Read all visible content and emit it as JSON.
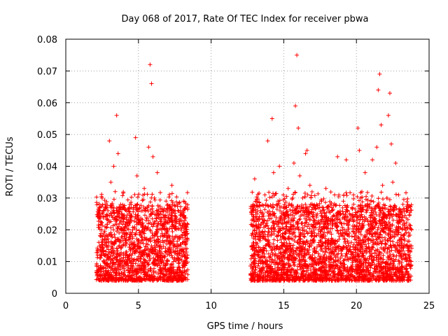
{
  "chart_data": {
    "type": "scatter",
    "title": "Day 068 of 2017, Rate Of TEC Index for receiver pbwa",
    "xlabel": "GPS time / hours",
    "ylabel": "ROTI / TECUs",
    "xlim": [
      0,
      25
    ],
    "ylim": [
      0,
      0.08
    ],
    "x_ticks": [
      0,
      5,
      10,
      15,
      20,
      25
    ],
    "y_ticks": [
      0,
      0.01,
      0.02,
      0.03,
      0.04,
      0.05,
      0.06,
      0.07,
      0.08
    ],
    "x_tick_labels": [
      "0",
      "5",
      "10",
      "15",
      "20",
      "25"
    ],
    "y_tick_labels": [
      "0",
      "0.01",
      "0.02",
      "0.03",
      "0.04",
      "0.05",
      "0.06",
      "0.07",
      "0.08"
    ],
    "grid": true,
    "marker": "+",
    "colors": {
      "marker": "#ff0000",
      "grid": "#a0a0a0",
      "axis": "#000000"
    },
    "data_segments": [
      {
        "x_start": 2.1,
        "x_end": 8.4
      },
      {
        "x_start": 12.7,
        "x_end": 23.8
      }
    ],
    "series": [
      {
        "name": "ROTI",
        "points": [
          [
            2.2,
            0.012
          ],
          [
            2.3,
            0.025
          ],
          [
            2.4,
            0.018
          ],
          [
            2.5,
            0.03
          ],
          [
            2.6,
            0.008
          ],
          [
            2.7,
            0.021
          ],
          [
            2.8,
            0.016
          ],
          [
            2.9,
            0.026
          ],
          [
            3.0,
            0.048
          ],
          [
            3.1,
            0.035
          ],
          [
            3.2,
            0.014
          ],
          [
            3.3,
            0.04
          ],
          [
            3.4,
            0.032
          ],
          [
            3.5,
            0.056
          ],
          [
            3.6,
            0.044
          ],
          [
            3.7,
            0.022
          ],
          [
            3.8,
            0.011
          ],
          [
            3.9,
            0.019
          ],
          [
            4.0,
            0.027
          ],
          [
            4.1,
            0.015
          ],
          [
            4.2,
            0.009
          ],
          [
            4.3,
            0.023
          ],
          [
            4.4,
            0.017
          ],
          [
            4.5,
            0.028
          ],
          [
            4.6,
            0.02
          ],
          [
            4.7,
            0.013
          ],
          [
            4.8,
            0.049
          ],
          [
            4.9,
            0.037
          ],
          [
            5.0,
            0.024
          ],
          [
            5.1,
            0.011
          ],
          [
            5.2,
            0.018
          ],
          [
            5.3,
            0.026
          ],
          [
            5.4,
            0.033
          ],
          [
            5.5,
            0.021
          ],
          [
            5.6,
            0.014
          ],
          [
            5.7,
            0.046
          ],
          [
            5.8,
            0.072
          ],
          [
            5.9,
            0.066
          ],
          [
            6.0,
            0.043
          ],
          [
            6.1,
            0.03
          ],
          [
            6.2,
            0.019
          ],
          [
            6.3,
            0.038
          ],
          [
            6.4,
            0.025
          ],
          [
            6.5,
            0.012
          ],
          [
            6.6,
            0.02
          ],
          [
            6.7,
            0.016
          ],
          [
            6.8,
            0.022
          ],
          [
            6.9,
            0.009
          ],
          [
            7.0,
            0.018
          ],
          [
            7.1,
            0.027
          ],
          [
            7.2,
            0.013
          ],
          [
            7.3,
            0.034
          ],
          [
            7.4,
            0.021
          ],
          [
            7.5,
            0.015
          ],
          [
            7.6,
            0.024
          ],
          [
            7.7,
            0.011
          ],
          [
            7.8,
            0.017
          ],
          [
            7.9,
            0.026
          ],
          [
            8.0,
            0.014
          ],
          [
            8.1,
            0.029
          ],
          [
            8.2,
            0.019
          ],
          [
            8.3,
            0.013
          ],
          [
            12.8,
            0.015
          ],
          [
            12.9,
            0.028
          ],
          [
            13.0,
            0.036
          ],
          [
            13.1,
            0.021
          ],
          [
            13.2,
            0.012
          ],
          [
            13.3,
            0.019
          ],
          [
            13.4,
            0.026
          ],
          [
            13.5,
            0.01
          ],
          [
            13.6,
            0.018
          ],
          [
            13.7,
            0.031
          ],
          [
            13.8,
            0.022
          ],
          [
            13.9,
            0.048
          ],
          [
            14.0,
            0.016
          ],
          [
            14.1,
            0.025
          ],
          [
            14.2,
            0.055
          ],
          [
            14.3,
            0.038
          ],
          [
            14.4,
            0.02
          ],
          [
            14.5,
            0.014
          ],
          [
            14.6,
            0.029
          ],
          [
            14.7,
            0.04
          ],
          [
            14.8,
            0.017
          ],
          [
            14.9,
            0.023
          ],
          [
            15.0,
            0.012
          ],
          [
            15.1,
            0.019
          ],
          [
            15.2,
            0.027
          ],
          [
            15.3,
            0.033
          ],
          [
            15.4,
            0.015
          ],
          [
            15.5,
            0.021
          ],
          [
            15.6,
            0.026
          ],
          [
            15.7,
            0.041
          ],
          [
            15.8,
            0.059
          ],
          [
            15.9,
            0.075
          ],
          [
            16.0,
            0.052
          ],
          [
            16.1,
            0.037
          ],
          [
            16.2,
            0.022
          ],
          [
            16.3,
            0.03
          ],
          [
            16.4,
            0.016
          ],
          [
            16.5,
            0.044
          ],
          [
            16.6,
            0.045
          ],
          [
            16.7,
            0.024
          ],
          [
            16.8,
            0.034
          ],
          [
            16.9,
            0.018
          ],
          [
            17.0,
            0.027
          ],
          [
            17.1,
            0.021
          ],
          [
            17.2,
            0.013
          ],
          [
            17.3,
            0.025
          ],
          [
            17.4,
            0.02
          ],
          [
            17.5,
            0.015
          ],
          [
            17.6,
            0.029
          ],
          [
            17.7,
            0.018
          ],
          [
            17.8,
            0.024
          ],
          [
            17.9,
            0.033
          ],
          [
            18.0,
            0.019
          ],
          [
            18.1,
            0.014
          ],
          [
            18.2,
            0.022
          ],
          [
            18.3,
            0.027
          ],
          [
            18.4,
            0.016
          ],
          [
            18.5,
            0.031
          ],
          [
            18.6,
            0.021
          ],
          [
            18.7,
            0.043
          ],
          [
            18.8,
            0.017
          ],
          [
            18.9,
            0.025
          ],
          [
            19.0,
            0.014
          ],
          [
            19.1,
            0.029
          ],
          [
            19.2,
            0.02
          ],
          [
            19.3,
            0.042
          ],
          [
            19.4,
            0.024
          ],
          [
            19.5,
            0.018
          ],
          [
            19.6,
            0.013
          ],
          [
            19.7,
            0.027
          ],
          [
            19.8,
            0.031
          ],
          [
            19.9,
            0.019
          ],
          [
            20.0,
            0.023
          ],
          [
            20.1,
            0.052
          ],
          [
            20.2,
            0.045
          ],
          [
            20.3,
            0.03
          ],
          [
            20.4,
            0.022
          ],
          [
            20.5,
            0.016
          ],
          [
            20.6,
            0.038
          ],
          [
            20.7,
            0.026
          ],
          [
            20.8,
            0.02
          ],
          [
            20.9,
            0.014
          ],
          [
            21.0,
            0.029
          ],
          [
            21.1,
            0.042
          ],
          [
            21.2,
            0.024
          ],
          [
            21.3,
            0.018
          ],
          [
            21.4,
            0.046
          ],
          [
            21.5,
            0.064
          ],
          [
            21.6,
            0.069
          ],
          [
            21.7,
            0.053
          ],
          [
            21.8,
            0.034
          ],
          [
            21.9,
            0.025
          ],
          [
            22.0,
            0.019
          ],
          [
            22.1,
            0.03
          ],
          [
            22.2,
            0.056
          ],
          [
            22.3,
            0.063
          ],
          [
            22.4,
            0.047
          ],
          [
            22.5,
            0.035
          ],
          [
            22.6,
            0.027
          ],
          [
            22.7,
            0.041
          ],
          [
            22.8,
            0.02
          ],
          [
            22.9,
            0.031
          ],
          [
            23.0,
            0.024
          ],
          [
            23.1,
            0.017
          ],
          [
            23.2,
            0.028
          ],
          [
            23.3,
            0.022
          ],
          [
            23.4,
            0.015
          ],
          [
            23.5,
            0.026
          ],
          [
            23.6,
            0.019
          ],
          [
            23.7,
            0.013
          ]
        ]
      }
    ]
  }
}
